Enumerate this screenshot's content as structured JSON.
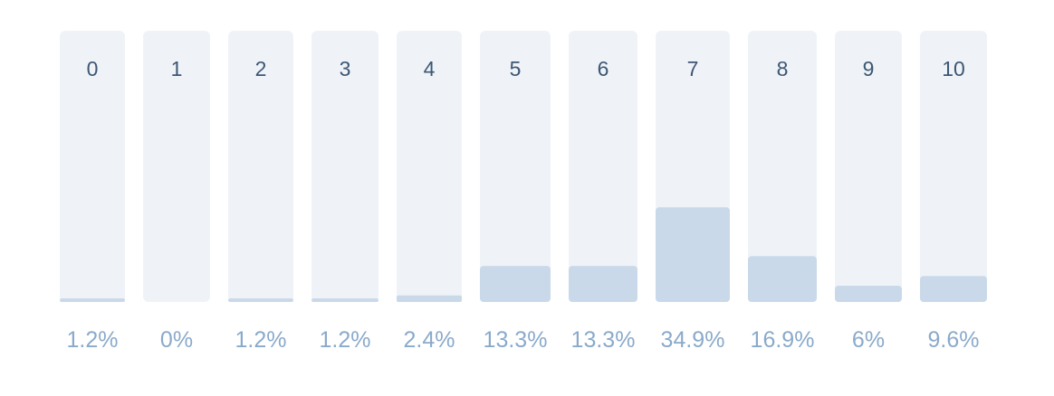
{
  "chart_data": {
    "type": "bar",
    "categories": [
      "0",
      "1",
      "2",
      "3",
      "4",
      "5",
      "6",
      "7",
      "8",
      "9",
      "10"
    ],
    "values": [
      1.2,
      0,
      1.2,
      1.2,
      2.4,
      13.3,
      13.3,
      34.9,
      16.9,
      6,
      9.6
    ],
    "value_labels": [
      "1.2%",
      "0%",
      "1.2%",
      "1.2%",
      "2.4%",
      "13.3%",
      "13.3%",
      "34.9%",
      "16.9%",
      "6%",
      "9.6%"
    ],
    "ylim": [
      0,
      100
    ],
    "grid": false,
    "legend": "none",
    "colors": {
      "track": "#eff3f8",
      "fill": "#cad9ea",
      "category_text": "#3d5773",
      "value_text": "#8aaacb"
    }
  }
}
